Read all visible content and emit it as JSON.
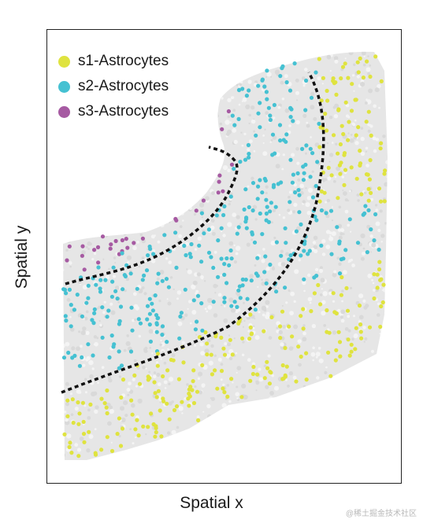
{
  "chart_data": {
    "type": "scatter",
    "title": "",
    "xlabel": "Spatial x",
    "ylabel": "Spatial y",
    "xlim": [
      0,
      450
    ],
    "ylim": [
      0,
      578
    ],
    "legend_position": "top-left",
    "background_color": "#e6e6e6",
    "series": [
      {
        "name": "s1-Astrocytes",
        "color": "#dfe33f"
      },
      {
        "name": "s2-Astrocytes",
        "color": "#45c1d2"
      },
      {
        "name": "s3-Astrocytes",
        "color": "#a65aa2"
      }
    ],
    "boundaries": "dashed black"
  },
  "watermark": "@稀土掘金技术社区"
}
